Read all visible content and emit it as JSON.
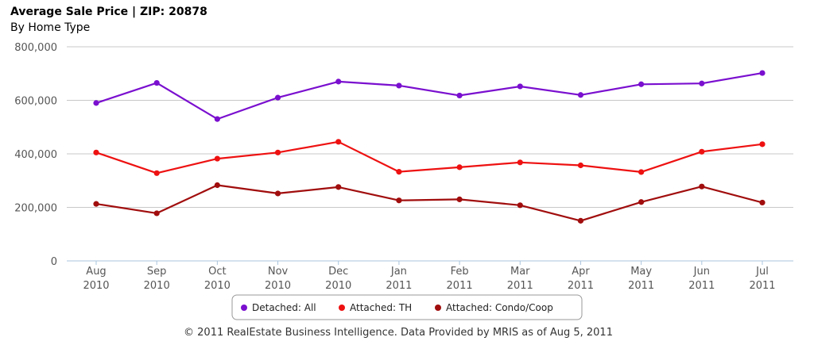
{
  "title": "Average Sale Price | ZIP: 20878",
  "subtitle": "By Home Type",
  "footer": "© 2011 RealEstate Business Intelligence. Data Provided by MRIS as of Aug 5, 2011",
  "chart_data": {
    "type": "line",
    "title": "Average Sale Price | ZIP: 20878",
    "subtitle": "By Home Type",
    "x": [
      {
        "month": "Aug",
        "year": "2010"
      },
      {
        "month": "Sep",
        "year": "2010"
      },
      {
        "month": "Oct",
        "year": "2010"
      },
      {
        "month": "Nov",
        "year": "2010"
      },
      {
        "month": "Dec",
        "year": "2010"
      },
      {
        "month": "Jan",
        "year": "2011"
      },
      {
        "month": "Feb",
        "year": "2011"
      },
      {
        "month": "Mar",
        "year": "2011"
      },
      {
        "month": "Apr",
        "year": "2011"
      },
      {
        "month": "May",
        "year": "2011"
      },
      {
        "month": "Jun",
        "year": "2011"
      },
      {
        "month": "Jul",
        "year": "2011"
      }
    ],
    "yticks": [
      "0",
      "200,000",
      "400,000",
      "600,000",
      "800,000"
    ],
    "ylim": [
      0,
      800000
    ],
    "grid": true,
    "legend_position": "bottom-center",
    "series": [
      {
        "name": "Detached: All",
        "color": "#7a0fcf",
        "values": [
          590000,
          665000,
          530000,
          610000,
          670000,
          655000,
          618000,
          652000,
          620000,
          660000,
          663000,
          702000
        ]
      },
      {
        "name": "Attached: TH",
        "color": "#ee1111",
        "values": [
          405000,
          328000,
          382000,
          405000,
          445000,
          333000,
          350000,
          368000,
          357000,
          332000,
          408000,
          436000
        ]
      },
      {
        "name": "Attached: Condo/Coop",
        "color": "#a10d0d",
        "values": [
          213000,
          178000,
          283000,
          252000,
          276000,
          226000,
          230000,
          208000,
          150000,
          220000,
          278000,
          218000
        ]
      }
    ]
  }
}
